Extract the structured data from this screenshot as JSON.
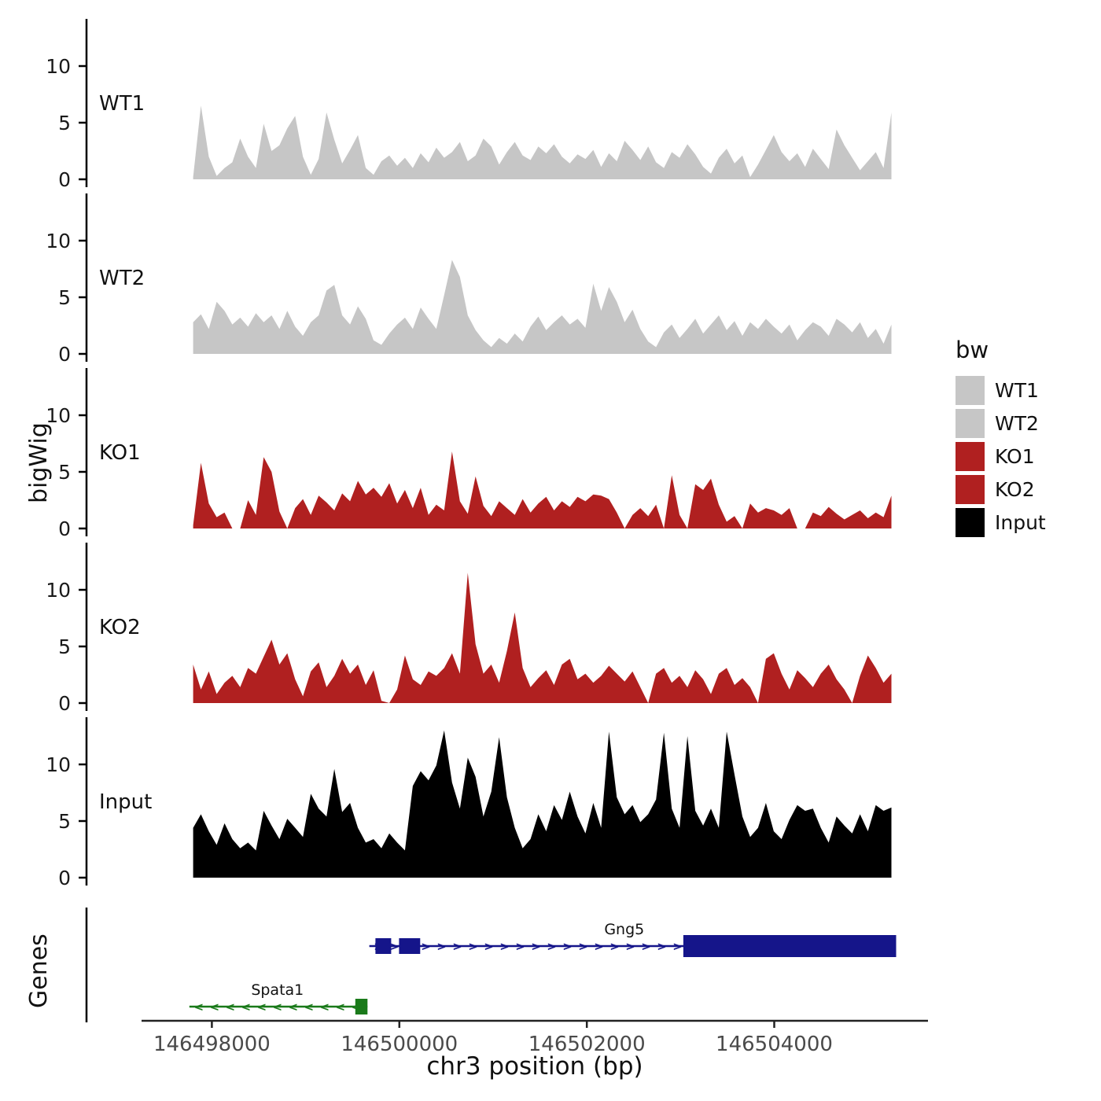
{
  "y_axis_label": "bigWig",
  "genes_axis_label": "Genes",
  "x_axis": {
    "label": "chr3 position (bp)",
    "range_bp": [
      146497250,
      146505640
    ],
    "ticks": [
      {
        "bp": 146498000,
        "label": "146498000"
      },
      {
        "bp": 146500000,
        "label": "146500000"
      },
      {
        "bp": 146502000,
        "label": "146502000"
      },
      {
        "bp": 146504000,
        "label": "146504000"
      }
    ]
  },
  "legend": {
    "title": "bw",
    "items": [
      {
        "label": "WT1",
        "color": "#c6c6c6"
      },
      {
        "label": "WT2",
        "color": "#c6c6c6"
      },
      {
        "label": "KO1",
        "color": "#b02020"
      },
      {
        "label": "KO2",
        "color": "#b02020"
      },
      {
        "label": "Input",
        "color": "#000000"
      }
    ]
  },
  "chart_data": {
    "type": "area",
    "title": "",
    "xlabel": "chr3 position (bp)",
    "ylabel": "bigWig",
    "x_range_bp": [
      146497250,
      146505640
    ],
    "tracks": [
      {
        "name": "WT1",
        "color": "#c6c6c6",
        "yticks": [
          0,
          5,
          10
        ],
        "ylim": [
          0,
          13
        ],
        "x_start_bp": 146497800,
        "x_end_bp": 146505250,
        "values": [
          0.2,
          6.5,
          2.0,
          0.3,
          1.0,
          1.5,
          3.6,
          2.0,
          1.0,
          4.9,
          2.5,
          3.0,
          4.5,
          5.6,
          2.0,
          0.4,
          1.8,
          5.9,
          3.5,
          1.4,
          2.6,
          3.9,
          1.0,
          0.4,
          1.6,
          2.1,
          1.2,
          1.9,
          1.0,
          2.3,
          1.5,
          2.8,
          1.9,
          2.4,
          3.3,
          1.6,
          2.1,
          3.6,
          2.9,
          1.3,
          2.4,
          3.3,
          2.1,
          1.7,
          2.9,
          2.3,
          3.1,
          2.0,
          1.4,
          2.2,
          1.8,
          2.6,
          1.1,
          2.3,
          1.6,
          3.4,
          2.6,
          1.7,
          2.9,
          1.5,
          1.0,
          2.4,
          1.9,
          3.1,
          2.2,
          1.1,
          0.5,
          1.9,
          2.7,
          1.4,
          2.1,
          0.2,
          1.3,
          2.6,
          3.9,
          2.4,
          1.6,
          2.3,
          1.1,
          2.7,
          1.8,
          0.9,
          4.4,
          3.0,
          1.9,
          0.8,
          1.6,
          2.4,
          1.0,
          5.9
        ]
      },
      {
        "name": "WT2",
        "color": "#c6c6c6",
        "yticks": [
          0,
          5,
          10
        ],
        "ylim": [
          0,
          13
        ],
        "x_start_bp": 146497800,
        "x_end_bp": 146505250,
        "values": [
          2.8,
          3.5,
          2.2,
          4.6,
          3.8,
          2.6,
          3.2,
          2.4,
          3.6,
          2.8,
          3.4,
          2.2,
          3.8,
          2.4,
          1.6,
          2.8,
          3.4,
          5.6,
          6.1,
          3.4,
          2.6,
          4.2,
          3.1,
          1.2,
          0.8,
          1.8,
          2.6,
          3.2,
          2.2,
          4.1,
          3.1,
          2.2,
          5.2,
          8.3,
          6.8,
          3.4,
          2.1,
          1.2,
          0.6,
          1.4,
          0.9,
          1.8,
          1.1,
          2.4,
          3.3,
          2.1,
          2.8,
          3.4,
          2.6,
          3.1,
          2.3,
          6.2,
          3.8,
          5.9,
          4.6,
          2.8,
          3.9,
          2.2,
          1.1,
          0.6,
          1.9,
          2.6,
          1.4,
          2.2,
          3.1,
          1.8,
          2.6,
          3.4,
          2.1,
          2.9,
          1.6,
          2.8,
          2.2,
          3.1,
          2.4,
          1.8,
          2.6,
          1.2,
          2.1,
          2.8,
          2.4,
          1.6,
          3.1,
          2.6,
          1.9,
          2.8,
          1.4,
          2.2,
          0.9,
          2.6
        ]
      },
      {
        "name": "KO1",
        "color": "#b02020",
        "yticks": [
          0,
          5,
          10
        ],
        "ylim": [
          0,
          13
        ],
        "x_start_bp": 146497800,
        "x_end_bp": 146505250,
        "values": [
          0.3,
          5.8,
          2.2,
          1.0,
          1.4,
          0,
          0,
          2.5,
          1.2,
          6.3,
          5.0,
          1.5,
          0,
          1.8,
          2.6,
          1.2,
          2.9,
          2.3,
          1.6,
          3.1,
          2.4,
          4.2,
          3.0,
          3.6,
          2.8,
          4.0,
          2.2,
          3.4,
          1.8,
          3.6,
          1.2,
          2.1,
          1.6,
          6.8,
          2.4,
          1.3,
          4.6,
          2.0,
          1.1,
          2.4,
          1.8,
          1.2,
          2.6,
          1.4,
          2.2,
          2.8,
          1.6,
          2.4,
          1.9,
          2.8,
          2.4,
          3.0,
          2.9,
          2.6,
          1.4,
          0,
          1.2,
          1.8,
          1.1,
          2.1,
          0,
          4.7,
          1.2,
          0,
          3.9,
          3.4,
          4.4,
          2.1,
          0.6,
          1.1,
          0,
          2.2,
          1.4,
          1.8,
          1.6,
          1.2,
          1.8,
          0,
          0,
          1.4,
          1.1,
          1.9,
          1.3,
          0.8,
          1.2,
          1.6,
          0.9,
          1.4,
          1.0,
          2.9
        ]
      },
      {
        "name": "KO2",
        "color": "#b02020",
        "yticks": [
          0,
          5,
          10
        ],
        "ylim": [
          0,
          13
        ],
        "x_start_bp": 146497800,
        "x_end_bp": 146505250,
        "values": [
          3.4,
          1.2,
          2.8,
          0.8,
          1.8,
          2.4,
          1.4,
          3.1,
          2.6,
          4.1,
          5.6,
          3.4,
          4.4,
          2.1,
          0.6,
          2.8,
          3.6,
          1.4,
          2.4,
          3.9,
          2.6,
          3.4,
          1.6,
          2.9,
          0.2,
          0,
          1.2,
          4.2,
          2.1,
          1.6,
          2.8,
          2.4,
          3.1,
          4.4,
          2.6,
          11.5,
          5.2,
          2.6,
          3.4,
          1.8,
          4.6,
          8.0,
          3.1,
          1.4,
          2.2,
          2.9,
          1.6,
          3.4,
          3.9,
          2.1,
          2.6,
          1.8,
          2.4,
          3.3,
          2.6,
          1.9,
          2.8,
          1.4,
          0,
          2.6,
          3.1,
          1.8,
          2.4,
          1.4,
          2.9,
          2.1,
          0.8,
          2.6,
          3.1,
          1.6,
          2.2,
          1.4,
          0,
          3.9,
          4.4,
          2.6,
          1.2,
          2.9,
          2.2,
          1.4,
          2.6,
          3.4,
          2.1,
          1.2,
          0,
          2.4,
          4.2,
          3.1,
          1.8,
          2.6
        ]
      },
      {
        "name": "Input",
        "color": "#000000",
        "yticks": [
          0,
          5,
          10
        ],
        "ylim": [
          0,
          13
        ],
        "x_start_bp": 146497800,
        "x_end_bp": 146505250,
        "values": [
          4.4,
          5.6,
          4.1,
          2.9,
          4.8,
          3.4,
          2.6,
          3.1,
          2.4,
          5.9,
          4.6,
          3.4,
          5.2,
          4.4,
          3.6,
          7.4,
          6.1,
          5.4,
          9.6,
          5.8,
          6.6,
          4.4,
          3.1,
          3.4,
          2.6,
          3.9,
          3.1,
          2.4,
          8.1,
          9.4,
          8.6,
          9.9,
          13.0,
          8.4,
          6.1,
          10.6,
          8.9,
          5.4,
          7.6,
          12.4,
          7.1,
          4.4,
          2.6,
          3.4,
          5.6,
          4.1,
          6.4,
          5.1,
          7.6,
          5.4,
          3.9,
          6.6,
          4.4,
          12.9,
          7.1,
          5.6,
          6.4,
          4.9,
          5.6,
          6.9,
          12.8,
          6.1,
          4.4,
          12.5,
          5.9,
          4.6,
          6.1,
          4.4,
          12.9,
          9.1,
          5.4,
          3.6,
          4.4,
          6.6,
          4.1,
          3.4,
          5.1,
          6.4,
          5.9,
          6.1,
          4.4,
          3.1,
          5.4,
          4.6,
          3.9,
          5.6,
          4.1,
          6.4,
          5.9,
          6.2
        ]
      }
    ],
    "genes": [
      {
        "name": "Gng5",
        "strand": "+",
        "color": "#15158a",
        "start_bp": 146499680,
        "end_bp": 146505300,
        "label_bp": 146502400,
        "exons": [
          {
            "start_bp": 146499745,
            "end_bp": 146499913,
            "thick": false
          },
          {
            "start_bp": 146499997,
            "end_bp": 146500223,
            "thick": false
          },
          {
            "start_bp": 146503030,
            "end_bp": 146505300,
            "thick": true
          }
        ]
      },
      {
        "name": "Spata1",
        "strand": "-",
        "color": "#1a7a1a",
        "start_bp": 146497760,
        "end_bp": 146499660,
        "label_bp": 146498700,
        "exons": [
          {
            "start_bp": 146499530,
            "end_bp": 146499660,
            "thick": false
          }
        ]
      }
    ]
  }
}
